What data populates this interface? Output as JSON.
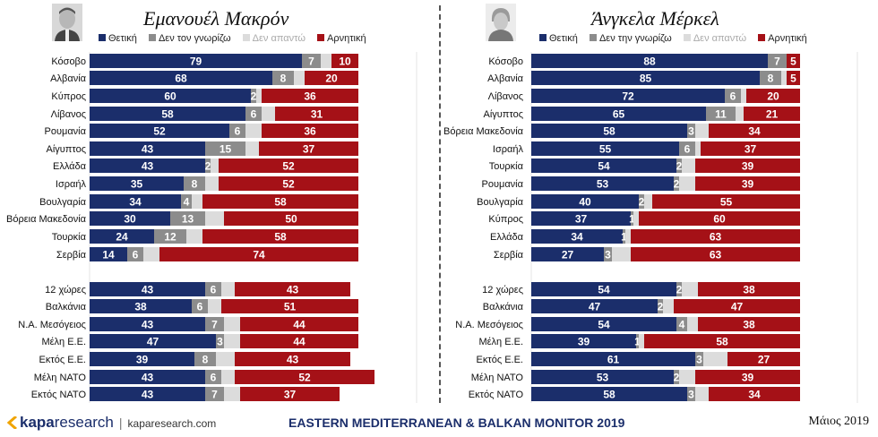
{
  "legend_labels": {
    "left": [
      "Θετική",
      "Δεν τον γνωρίζω",
      "Δεν απαντώ",
      "Αρνητική"
    ],
    "right": [
      "Θετική",
      "Δεν την γνωρίζω",
      "Δεν απαντώ",
      "Αρνητική"
    ]
  },
  "colors": {
    "positive": "#1b2e6b",
    "unknown": "#8c8c8c",
    "no_answer": "#dcdcdc",
    "negative": "#a51117"
  },
  "footer": {
    "logo_main": "kapa",
    "logo_sub": "research",
    "url": "kaparesearch.com",
    "title": "EASTERN MEDITERRANEAN & BALKAN MONITOR 2019",
    "date": "Μάιος 2019"
  },
  "chart_data": [
    {
      "type": "bar",
      "title": "Εμανουέλ Μακρόν",
      "categories": [
        "Κόσοβο",
        "Αλβανία",
        "Κύπρος",
        "Λίβανος",
        "Ρουμανία",
        "Αίγυπτος",
        "Ελλάδα",
        "Ισραήλ",
        "Βουλγαρία",
        "Βόρεια Μακεδονία",
        "Τουρκία",
        "Σερβία",
        "12 χώρες",
        "Βαλκάνια",
        "Ν.Α. Μεσόγειος",
        "Μέλη Ε.Ε.",
        "Εκτός Ε.Ε.",
        "Μέλη ΝΑΤΟ",
        "Εκτός ΝΑΤΟ"
      ],
      "series": [
        {
          "name": "Θετική",
          "values": [
            79,
            68,
            60,
            58,
            52,
            43,
            43,
            35,
            34,
            30,
            24,
            14,
            43,
            38,
            43,
            47,
            39,
            43,
            43
          ]
        },
        {
          "name": "Δεν τον γνωρίζω",
          "values": [
            7,
            8,
            2,
            6,
            6,
            15,
            2,
            8,
            4,
            13,
            12,
            6,
            6,
            6,
            7,
            3,
            8,
            6,
            7
          ]
        },
        {
          "name": "Δεν απαντώ",
          "values": [
            4,
            4,
            2,
            5,
            6,
            5,
            3,
            5,
            4,
            7,
            6,
            6,
            5,
            5,
            6,
            6,
            7,
            5,
            6
          ]
        },
        {
          "name": "Αρνητική",
          "values": [
            10,
            20,
            36,
            31,
            36,
            37,
            52,
            52,
            58,
            50,
            58,
            74,
            43,
            51,
            44,
            44,
            43,
            52,
            37
          ]
        }
      ]
    },
    {
      "type": "bar",
      "title": "Άνγκελα Μέρκελ",
      "categories": [
        "Κόσοβο",
        "Αλβανία",
        "Λίβανος",
        "Αίγυπτος",
        "Βόρεια Μακεδονία",
        "Ισραήλ",
        "Τουρκία",
        "Ρουμανία",
        "Βουλγαρία",
        "Κύπρος",
        "Ελλάδα",
        "Σερβία",
        "12 χώρες",
        "Βαλκάνια",
        "Ν.Α. Μεσόγειος",
        "Μέλη Ε.Ε.",
        "Εκτός Ε.Ε.",
        "Μέλη ΝΑΤΟ",
        "Εκτός ΝΑΤΟ"
      ],
      "series": [
        {
          "name": "Θετική",
          "values": [
            88,
            85,
            72,
            65,
            58,
            55,
            54,
            53,
            40,
            37,
            34,
            27,
            54,
            47,
            54,
            39,
            61,
            53,
            58
          ]
        },
        {
          "name": "Δεν την γνωρίζω",
          "values": [
            7,
            8,
            6,
            11,
            3,
            6,
            2,
            2,
            2,
            1,
            1,
            3,
            2,
            2,
            4,
            1,
            3,
            2,
            3
          ]
        },
        {
          "name": "Δεν απαντώ",
          "values": [
            0,
            2,
            2,
            3,
            5,
            2,
            5,
            6,
            3,
            2,
            2,
            7,
            6,
            4,
            4,
            2,
            9,
            6,
            5
          ]
        },
        {
          "name": "Αρνητική",
          "values": [
            5,
            5,
            20,
            21,
            34,
            37,
            39,
            39,
            55,
            60,
            63,
            63,
            38,
            47,
            38,
            58,
            27,
            39,
            34
          ]
        }
      ]
    }
  ]
}
